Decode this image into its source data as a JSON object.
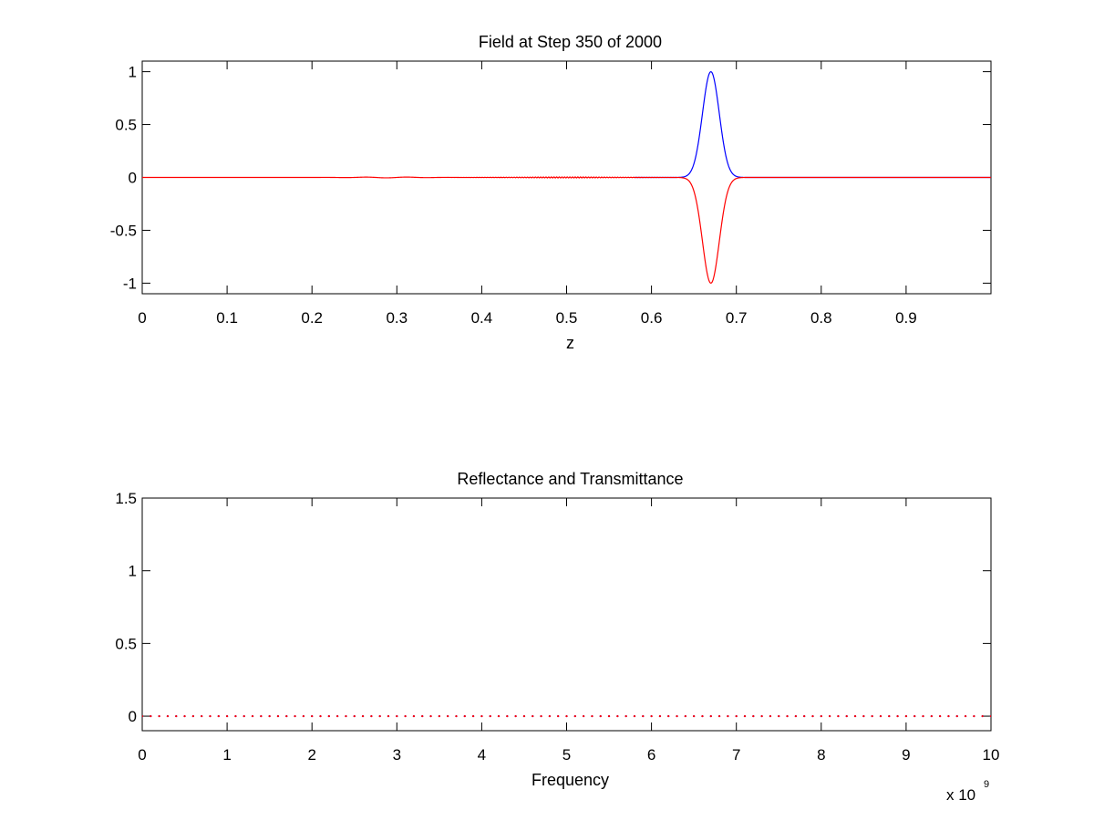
{
  "chart_data": [
    {
      "type": "line",
      "title": "Field at Step 350 of 2000",
      "xlabel": "z",
      "ylabel": "",
      "xlim": [
        0,
        1
      ],
      "ylim": [
        -1.1,
        1.1
      ],
      "xticks": [
        0,
        0.1,
        0.2,
        0.3,
        0.4,
        0.5,
        0.6,
        0.7,
        0.8,
        0.9
      ],
      "xtick_labels": [
        "0",
        "0.1",
        "0.2",
        "0.3",
        "0.4",
        "0.5",
        "0.6",
        "0.7",
        "0.8",
        "0.9"
      ],
      "yticks": [
        1,
        0.5,
        0,
        -0.5,
        -1
      ],
      "ytick_labels": [
        "1",
        "0.5",
        "0",
        "-0.5",
        "-1"
      ],
      "grid": false,
      "colors": {
        "series_1": "#0000ff",
        "series_2": "#ff0000"
      },
      "series": [
        {
          "color": "#0000ff",
          "pulse": {
            "center": 0.67,
            "amplitude": 1.0,
            "width": 0.014
          },
          "nonzero_range": [
            0.58,
            0.78
          ]
        },
        {
          "color": "#ff0000",
          "pulse": {
            "center": 0.67,
            "amplitude": -1.0,
            "width": 0.014
          },
          "ripples": [
            {
              "center": 0.29,
              "amplitude": 0.004,
              "width": 0.05,
              "frequency": 20
            },
            {
              "center": 0.5,
              "amplitude": 0.005,
              "width": 0.08,
              "frequency": 320
            }
          ]
        }
      ]
    },
    {
      "type": "line",
      "title": "Reflectance and Transmittance",
      "xlabel": "Frequency",
      "ylabel": "",
      "xlim": [
        0,
        10
      ],
      "ylim": [
        -0.1,
        1.5
      ],
      "x_multiplier": {
        "base": "x 10",
        "exponent": "9"
      },
      "xticks": [
        0,
        1,
        2,
        3,
        4,
        5,
        6,
        7,
        8,
        9,
        10
      ],
      "xtick_labels": [
        "0",
        "1",
        "2",
        "3",
        "4",
        "5",
        "6",
        "7",
        "8",
        "9",
        "10"
      ],
      "yticks": [
        1.5,
        1,
        0.5,
        0
      ],
      "ytick_labels": [
        "1.5",
        "1",
        "0.5",
        "0"
      ],
      "grid": false,
      "colors": {
        "series_1": "#0000ff",
        "series_2": "#ff0000"
      },
      "series": [
        {
          "color": "#0000ff",
          "marker": "dot",
          "x_range": [
            0,
            10
          ],
          "point_count": 101,
          "value": 0
        },
        {
          "color": "#ff0000",
          "marker": "dot",
          "x_range": [
            0,
            10
          ],
          "point_count": 101,
          "value": 0
        }
      ]
    }
  ]
}
